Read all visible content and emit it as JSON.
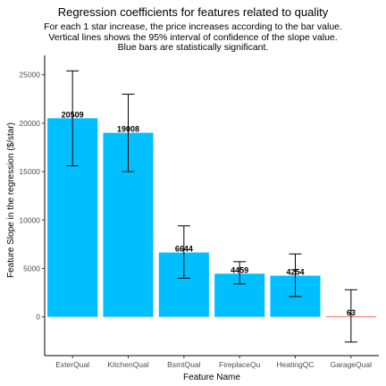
{
  "chart_data": {
    "type": "bar",
    "title": "Regression coefficients for features related to quality",
    "subtitle": "For each 1 star increase, the price increases according to the bar value.\nVertical lines shows the 95% interval of confidence of the slope value.\nBlue bars are statistically significant.",
    "xlabel": "Feature Name",
    "ylabel": "Feature Slope in the regression ($/star)",
    "ylim": [
      -4000,
      27000
    ],
    "yticks": [
      0,
      5000,
      10000,
      15000,
      20000,
      25000
    ],
    "categories": [
      "ExterQual",
      "KitchenQual",
      "BsmtQual",
      "FireplaceQu",
      "HeatingQC",
      "GarageQual"
    ],
    "values": [
      20509,
      19008,
      6644,
      4459,
      4254,
      63
    ],
    "ci_low": [
      15600,
      15000,
      4000,
      3400,
      2100,
      -2600
    ],
    "ci_high": [
      25400,
      23000,
      9400,
      5700,
      6500,
      2800
    ],
    "significant": [
      true,
      true,
      true,
      true,
      true,
      false
    ],
    "colors": {
      "significant": "#00BFFF",
      "not_significant": "#F8766D",
      "errorbar": "#000000",
      "axis": "#000000"
    },
    "grid": false,
    "legend": "none"
  }
}
